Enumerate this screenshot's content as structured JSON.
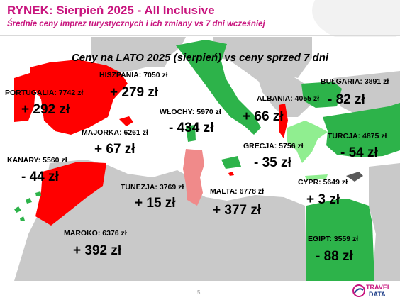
{
  "header": {
    "title": "RYNEK: Sierpień 2025 - All Inclusive",
    "subtitle": "Średnie ceny imprez turystycznych i ich zmiany vs 7 dni wcześniej"
  },
  "map": {
    "title": "Ceny na LATO 2025 (sierpień) vs ceny sprzed 7 dni",
    "colors": {
      "increase": "#ff0000",
      "small_increase": "#f08a8a",
      "decrease": "#2db34a",
      "small_decrease": "#90ee90",
      "neutral_land": "#c9c9c9",
      "neutral_dark": "#5a5a5a",
      "sea": "#ffffff"
    },
    "destinations": [
      {
        "id": "portugalia",
        "label": "PORTUGALIA: 7742 zł",
        "change": "+ 292 zł"
      },
      {
        "id": "hiszpania",
        "label": "HISZPANIA: 7050 zł",
        "change": "+ 279 zł"
      },
      {
        "id": "majorka",
        "label": "MAJORKA: 6261 zł",
        "change": "+ 67 zł"
      },
      {
        "id": "kanary",
        "label": "KANARY: 5560 zł",
        "change": "- 44 zł"
      },
      {
        "id": "maroko",
        "label": "MAROKO: 6376 zł",
        "change": "+ 392 zł"
      },
      {
        "id": "wlochy",
        "label": "WŁOCHY: 5970 zł",
        "change": "- 434 zł"
      },
      {
        "id": "tunezja",
        "label": "TUNEZJA: 3769 zł",
        "change": "+ 15 zł"
      },
      {
        "id": "malta",
        "label": "MALTA: 6778 zł",
        "change": "+ 377 zł"
      },
      {
        "id": "albania",
        "label": "ALBANIA: 4055 zł",
        "change": "+ 66 zł"
      },
      {
        "id": "grecja",
        "label": "GRECJA: 5756 zł",
        "change": "- 35 zł"
      },
      {
        "id": "bulgaria",
        "label": "BUŁGARIA: 3891 zł",
        "change": "- 82 zł"
      },
      {
        "id": "turcja",
        "label": "TURCJA: 4875 zł",
        "change": "- 54 zł"
      },
      {
        "id": "cypr",
        "label": "CYPR: 5649 zł",
        "change": "+ 3 zł"
      },
      {
        "id": "egipt",
        "label": "EGIPT: 3559 zł",
        "change": "- 88 zł"
      }
    ]
  },
  "footer": {
    "page_number": "5",
    "logo_line1": "TRAVEL",
    "logo_line2": "DATA",
    "logo_colors": {
      "travel": "#c8157e",
      "data": "#1f3f8a"
    }
  }
}
